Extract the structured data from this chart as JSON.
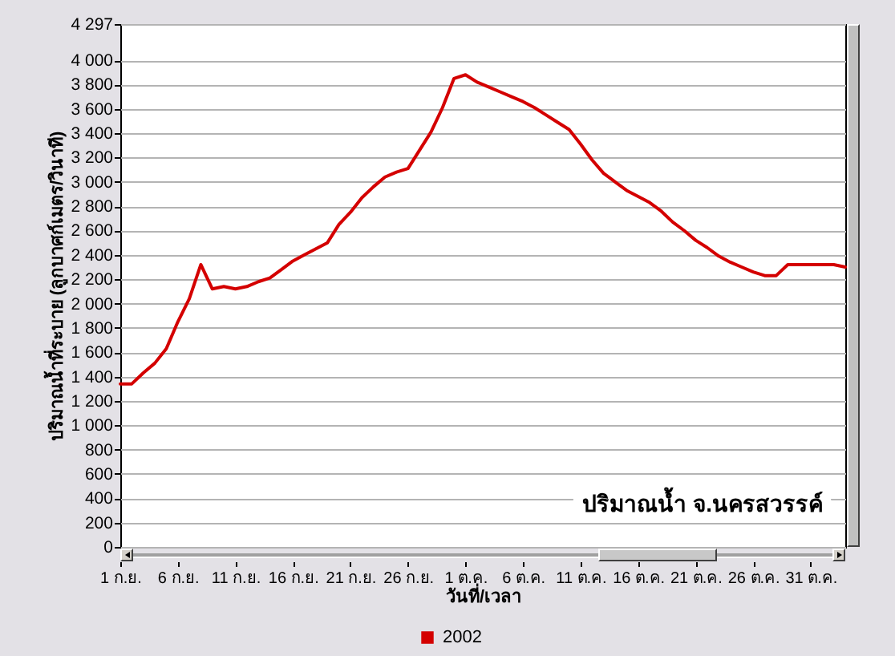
{
  "chart_data": {
    "type": "line",
    "title": "ปริมาณน้ำ จ.นครสวรรค์",
    "xlabel": "วันที่/เวลา",
    "ylabel": "ปริมาณน้ำที่ระบาย (ลูกบาศก์เมตร/วินาที)",
    "x": [
      "--09-01",
      "--09-02",
      "--09-03",
      "--09-04",
      "--09-05",
      "--09-06",
      "--09-07",
      "--09-08",
      "--09-09",
      "--09-10",
      "--09-11",
      "--09-12",
      "--09-13",
      "--09-14",
      "--09-15",
      "--09-16",
      "--09-17",
      "--09-18",
      "--09-19",
      "--09-20",
      "--09-21",
      "--09-22",
      "--09-23",
      "--09-24",
      "--09-25",
      "--09-26",
      "--09-27",
      "--09-28",
      "--09-29",
      "--09-30",
      "--10-01",
      "--10-02",
      "--10-03",
      "--10-04",
      "--10-05",
      "--10-06",
      "--10-07",
      "--10-08",
      "--10-09",
      "--10-10",
      "--10-11",
      "--10-12",
      "--10-13",
      "--10-14",
      "--10-15",
      "--10-16",
      "--10-17",
      "--10-18",
      "--10-19",
      "--10-20",
      "--10-21",
      "--10-22",
      "--10-23",
      "--10-24",
      "--10-25",
      "--10-26",
      "--10-27",
      "--10-28",
      "--10-29",
      "--10-30",
      "--10-31",
      "--11-01",
      "--11-02",
      "--11-03"
    ],
    "series": [
      {
        "name": "2002",
        "color": "#d40000",
        "values": [
          1340,
          1340,
          1430,
          1510,
          1630,
          1850,
          2040,
          2320,
          2120,
          2140,
          2120,
          2140,
          2180,
          2210,
          2280,
          2350,
          2400,
          2450,
          2500,
          2650,
          2750,
          2870,
          2960,
          3040,
          3080,
          3110,
          3260,
          3410,
          3610,
          3850,
          3880,
          3820,
          3780,
          3740,
          3700,
          3660,
          3610,
          3550,
          3490,
          3430,
          3310,
          3180,
          3070,
          3000,
          2930,
          2880,
          2830,
          2760,
          2670,
          2600,
          2520,
          2460,
          2390,
          2340,
          2300,
          2260,
          2230,
          2230,
          2320,
          2320,
          2320,
          2320,
          2320,
          2300
        ]
      }
    ],
    "xlim": [
      "--09-01",
      "--11-03"
    ],
    "xticks": [
      {
        "value": "--09-01",
        "label": "1 ก.ย."
      },
      {
        "value": "--09-06",
        "label": "6 ก.ย."
      },
      {
        "value": "--09-11",
        "label": "11 ก.ย."
      },
      {
        "value": "--09-16",
        "label": "16 ก.ย."
      },
      {
        "value": "--09-21",
        "label": "21 ก.ย."
      },
      {
        "value": "--09-26",
        "label": "26 ก.ย."
      },
      {
        "value": "--10-01",
        "label": "1 ต.ค."
      },
      {
        "value": "--10-06",
        "label": "6 ต.ค."
      },
      {
        "value": "--10-11",
        "label": "11 ต.ค."
      },
      {
        "value": "--10-16",
        "label": "16 ต.ค."
      },
      {
        "value": "--10-21",
        "label": "21 ต.ค."
      },
      {
        "value": "--10-26",
        "label": "26 ต.ค."
      },
      {
        "value": "--10-31",
        "label": "31 ต.ค."
      }
    ],
    "ylim": [
      0,
      4297
    ],
    "yticks": [
      0,
      200,
      400,
      600,
      800,
      {
        "value": 1000,
        "label": "1 000"
      },
      {
        "value": 1200,
        "label": "1 200"
      },
      {
        "value": 1400,
        "label": "1 400"
      },
      {
        "value": 1600,
        "label": "1 600"
      },
      {
        "value": 1800,
        "label": "1 800"
      },
      {
        "value": 2000,
        "label": "2 000"
      },
      {
        "value": 2200,
        "label": "2 200"
      },
      {
        "value": 2400,
        "label": "2 400"
      },
      {
        "value": 2600,
        "label": "2 600"
      },
      {
        "value": 2800,
        "label": "2 800"
      },
      {
        "value": 3000,
        "label": "3 000"
      },
      {
        "value": 3200,
        "label": "3 200"
      },
      {
        "value": 3400,
        "label": "3 400"
      },
      {
        "value": 3600,
        "label": "3 600"
      },
      {
        "value": 3800,
        "label": "3 800"
      },
      {
        "value": 4000,
        "label": "4 000"
      },
      {
        "value": 4297,
        "label": "4 297"
      }
    ],
    "grid": "y",
    "legend": "bottom",
    "line_style": "solid"
  }
}
